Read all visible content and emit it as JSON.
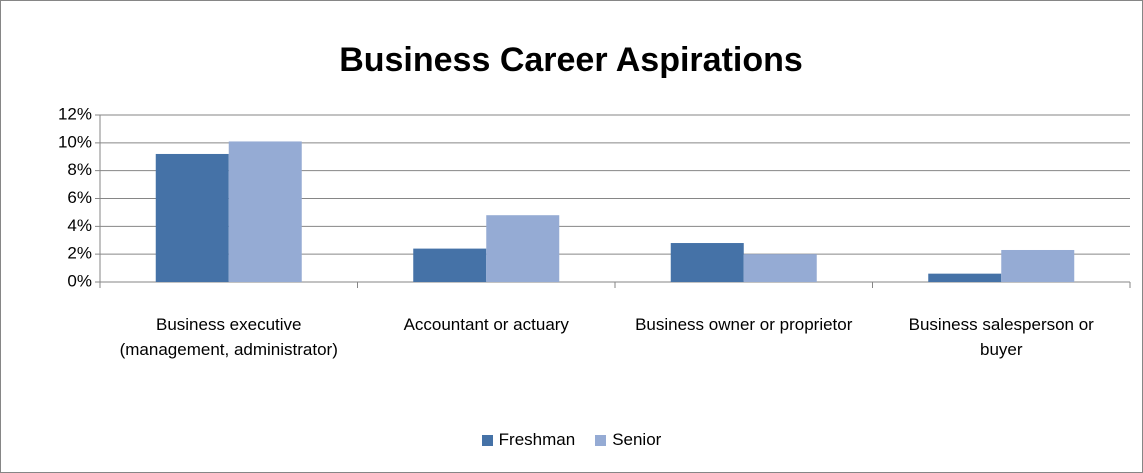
{
  "chart_data": {
    "type": "bar",
    "title": "Business Career Aspirations",
    "categories": [
      "Business executive (management, administrator)",
      "Accountant or actuary",
      "Business owner or proprietor",
      "Business salesperson or buyer"
    ],
    "series": [
      {
        "name": "Freshman",
        "color": "#4572a7",
        "values": [
          9.2,
          2.4,
          2.8,
          0.6
        ]
      },
      {
        "name": "Senior",
        "color": "#95abd4",
        "values": [
          10.1,
          4.8,
          2.0,
          2.3
        ]
      }
    ],
    "ylim": [
      0,
      12
    ],
    "yticks": [
      {
        "value": 0,
        "label": "0%"
      },
      {
        "value": 2,
        "label": "2%"
      },
      {
        "value": 4,
        "label": "4%"
      },
      {
        "value": 6,
        "label": "6%"
      },
      {
        "value": 8,
        "label": "8%"
      },
      {
        "value": 10,
        "label": "10%"
      },
      {
        "value": 12,
        "label": "12%"
      }
    ],
    "grid": true,
    "legend": "bottom"
  }
}
